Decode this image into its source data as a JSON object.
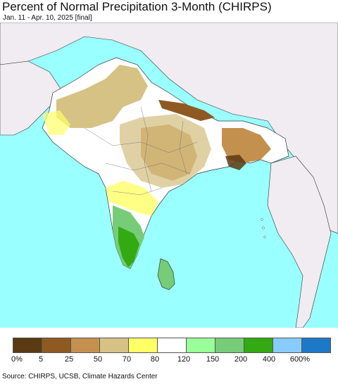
{
  "header": {
    "title": "Percent of Normal Precipitation 3-Month (CHIRPS)",
    "subtitle": "Jan. 11 - Apr. 10, 2025 [final]"
  },
  "legend": {
    "colors": [
      "#5a3a12",
      "#8f5a22",
      "#c4904e",
      "#d6c285",
      "#ffff66",
      "#ffffff",
      "#99ff99",
      "#77cc77",
      "#33aa11",
      "#88ccff",
      "#1e78c8"
    ],
    "labels": [
      "0%",
      "5",
      "25",
      "50",
      "70",
      "80",
      "120",
      "150",
      "200",
      "400",
      "600%"
    ]
  },
  "map": {
    "ocean_color": "#99ffff",
    "outside_land_color": "#f0ecf2",
    "border_color": "#222222"
  },
  "footer": {
    "source": "Source: CHIRPS, UCSB, Climate Hazards Center"
  }
}
